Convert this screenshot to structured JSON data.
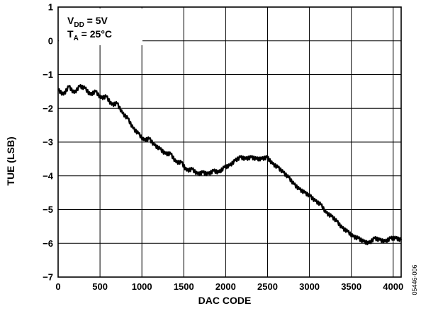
{
  "chart_data": {
    "type": "line",
    "xlabel": "DAC CODE",
    "ylabel": "TUE (LSB)",
    "xlim": [
      0,
      4095
    ],
    "ylim": [
      -7,
      1
    ],
    "xticks": [
      0,
      500,
      1000,
      1500,
      2000,
      2500,
      3000,
      3500,
      4000
    ],
    "yticks": [
      1,
      0,
      -1,
      -2,
      -3,
      -4,
      -5,
      -6,
      -7
    ],
    "xtick_labels": [
      "0",
      "500",
      "1000",
      "1500",
      "2000",
      "2500",
      "3000",
      "3500",
      "4000"
    ],
    "ytick_labels": [
      "1",
      "0",
      "−1",
      "−2",
      "−3",
      "−4",
      "−5",
      "−6",
      "−7"
    ],
    "grid": true,
    "annotation": {
      "line1_main": "V",
      "line1_sub": "DD",
      "line1_rest": " = 5V",
      "line2_main": "T",
      "line2_sub": "A",
      "line2_rest": " = 25°C"
    },
    "series": [
      {
        "x": [
          0,
          64,
          128,
          192,
          256,
          320,
          384,
          448,
          512,
          576,
          640,
          704,
          768,
          832,
          896,
          960,
          1024,
          1088,
          1152,
          1216,
          1280,
          1344,
          1408,
          1472,
          1536,
          1600,
          1664,
          1728,
          1792,
          1856,
          1920,
          1984,
          2048,
          2112,
          2176,
          2240,
          2304,
          2368,
          2432,
          2496,
          2560,
          2624,
          2688,
          2752,
          2816,
          2880,
          2944,
          3008,
          3072,
          3136,
          3200,
          3264,
          3328,
          3392,
          3456,
          3520,
          3584,
          3648,
          3712,
          3776,
          3840,
          3904,
          3968,
          4032,
          4095
        ],
        "values": [
          -1.45,
          -1.6,
          -1.35,
          -1.55,
          -1.35,
          -1.4,
          -1.6,
          -1.5,
          -1.7,
          -1.65,
          -1.9,
          -1.85,
          -2.15,
          -2.3,
          -2.6,
          -2.75,
          -2.95,
          -2.9,
          -3.1,
          -3.2,
          -3.35,
          -3.35,
          -3.6,
          -3.6,
          -3.85,
          -3.8,
          -3.95,
          -3.9,
          -3.95,
          -3.85,
          -3.9,
          -3.75,
          -3.7,
          -3.55,
          -3.45,
          -3.5,
          -3.45,
          -3.5,
          -3.5,
          -3.45,
          -3.65,
          -3.75,
          -3.9,
          -4.05,
          -4.25,
          -4.4,
          -4.5,
          -4.6,
          -4.75,
          -4.85,
          -5.1,
          -5.2,
          -5.35,
          -5.55,
          -5.65,
          -5.8,
          -5.85,
          -5.95,
          -6.0,
          -5.85,
          -5.9,
          -5.95,
          -5.85,
          -5.85,
          -5.9
        ]
      }
    ]
  },
  "figure_code": "05446-006"
}
